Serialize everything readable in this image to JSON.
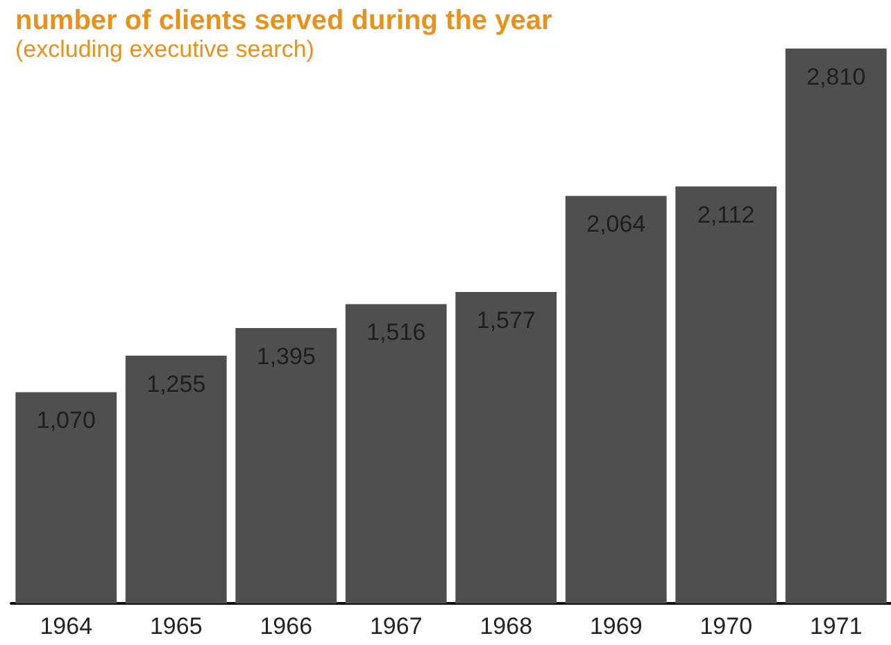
{
  "chart_data": {
    "type": "bar",
    "title": "number of clients served during the year",
    "subtitle": "(excluding executive search)",
    "categories": [
      "1964",
      "1965",
      "1966",
      "1967",
      "1968",
      "1969",
      "1970",
      "1971"
    ],
    "values": [
      1070,
      1255,
      1395,
      1516,
      1577,
      2064,
      2112,
      2810
    ],
    "value_labels": [
      "1,070",
      "1,255",
      "1,395",
      "1,516",
      "1,577",
      "2,064",
      "2,112",
      "2,810"
    ],
    "color": "#4f4f4f"
  }
}
